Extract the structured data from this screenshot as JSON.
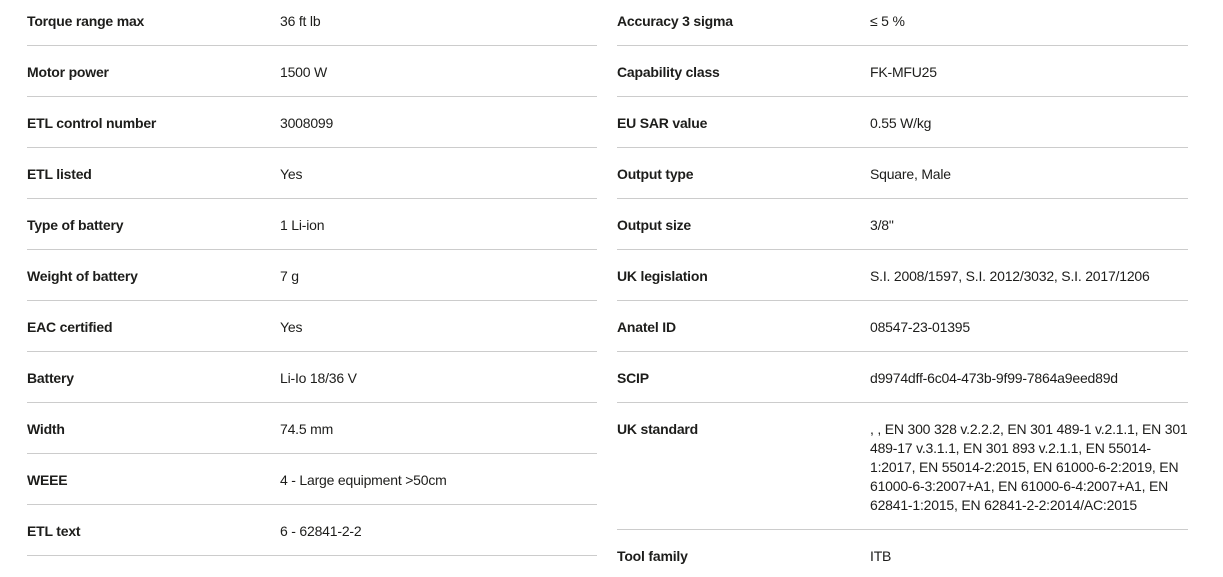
{
  "colors": {
    "text": "#1d1d1b",
    "divider": "#cccccc",
    "background": "#ffffff"
  },
  "spec_table": {
    "left_column": [
      {
        "label": "Torque range max",
        "value": "36 ft lb"
      },
      {
        "label": "Motor power",
        "value": "1500 W"
      },
      {
        "label": "ETL control number",
        "value": "3008099"
      },
      {
        "label": "ETL listed",
        "value": "Yes"
      },
      {
        "label": "Type of battery",
        "value": "1 Li-ion"
      },
      {
        "label": "Weight of battery",
        "value": "7 g"
      },
      {
        "label": "EAC certified",
        "value": "Yes"
      },
      {
        "label": "Battery",
        "value": "Li-Io 18/36 V"
      },
      {
        "label": "Width",
        "value": "74.5 mm"
      },
      {
        "label": "WEEE",
        "value": "4 - Large equipment >50cm"
      },
      {
        "label": "ETL text",
        "value": "6 - 62841-2-2"
      }
    ],
    "right_column": [
      {
        "label": "Accuracy 3 sigma",
        "value": "≤ 5 %"
      },
      {
        "label": "Capability class",
        "value": "FK-MFU25"
      },
      {
        "label": "EU SAR value",
        "value": "0.55 W/kg"
      },
      {
        "label": "Output type",
        "value": "Square, Male"
      },
      {
        "label": "Output size",
        "value": "3/8\""
      },
      {
        "label": "UK legislation",
        "value": "S.I. 2008/1597, S.I. 2012/3032, S.I. 2017/1206"
      },
      {
        "label": "Anatel ID",
        "value": "08547-23-01395"
      },
      {
        "label": "SCIP",
        "value": "d9974dff-6c04-473b-9f99-7864a9eed89d"
      },
      {
        "label": "UK standard",
        "value": ", , EN 300 328 v.2.2.2, EN 301 489-1 v.2.1.1, EN 301 489-17 v.3.1.1, EN 301 893 v.2.1.1, EN 55014-1:2017, EN 55014-2:2015, EN 61000-6-2:2019, EN 61000-6-3:2007+A1, EN 61000-6-4:2007+A1, EN 62841-1:2015, EN 62841-2-2:2014/AC:2015"
      },
      {
        "label": "Tool family",
        "value": "ITB"
      }
    ]
  }
}
